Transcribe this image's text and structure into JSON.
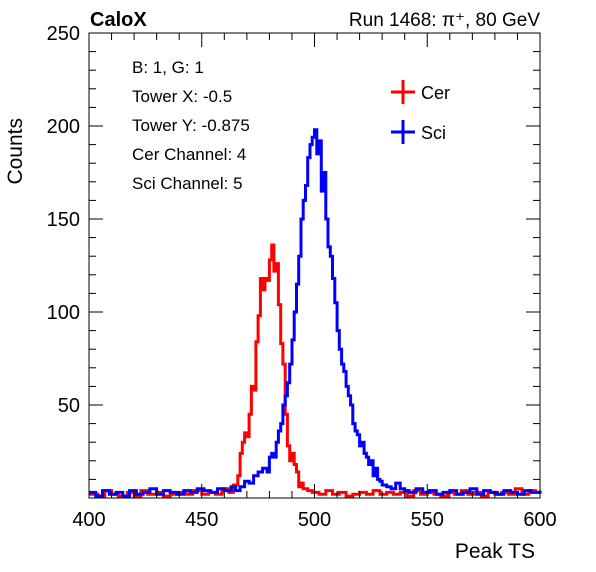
{
  "header": {
    "left": "CaloX",
    "right": "Run 1468:   π⁺, 80 GeV"
  },
  "chart_data": {
    "type": "line",
    "style": "step-histogram",
    "title": "",
    "xlabel": "Peak TS",
    "ylabel": "Counts",
    "xlim": [
      400,
      600
    ],
    "ylim": [
      0,
      250
    ],
    "xticks": [
      400,
      450,
      500,
      550,
      600
    ],
    "yticks": [
      50,
      100,
      150,
      200,
      250
    ],
    "grid": false,
    "legend": "top-right",
    "info": [
      "B: 1, G: 1",
      "Tower X: -0.5",
      "Tower Y: -0.875",
      "Cer Channel: 4",
      "Sci Channel: 5"
    ],
    "series": [
      {
        "name": "Cer",
        "color": "#ff0000",
        "points": [
          [
            400,
            2
          ],
          [
            404,
            1
          ],
          [
            407,
            4
          ],
          [
            410,
            2
          ],
          [
            413,
            1
          ],
          [
            417,
            3
          ],
          [
            420,
            1
          ],
          [
            423,
            4
          ],
          [
            426,
            2
          ],
          [
            430,
            3
          ],
          [
            433,
            1
          ],
          [
            436,
            2
          ],
          [
            440,
            3
          ],
          [
            443,
            2
          ],
          [
            446,
            4
          ],
          [
            450,
            2
          ],
          [
            453,
            3
          ],
          [
            456,
            2
          ],
          [
            459,
            5
          ],
          [
            462,
            3
          ],
          [
            464,
            7
          ],
          [
            466,
            12
          ],
          [
            467,
            24
          ],
          [
            468,
            30
          ],
          [
            469,
            35
          ],
          [
            470,
            33
          ],
          [
            471,
            45
          ],
          [
            472,
            60
          ],
          [
            473,
            58
          ],
          [
            474,
            84
          ],
          [
            475,
            98
          ],
          [
            476,
            118
          ],
          [
            477,
            112
          ],
          [
            478,
            118
          ],
          [
            479,
            117
          ],
          [
            480,
            128
          ],
          [
            481,
            136
          ],
          [
            482,
            122
          ],
          [
            483,
            126
          ],
          [
            484,
            104
          ],
          [
            485,
            83
          ],
          [
            486,
            72
          ],
          [
            487,
            45
          ],
          [
            488,
            28
          ],
          [
            489,
            20
          ],
          [
            490,
            24
          ],
          [
            491,
            18
          ],
          [
            492,
            14
          ],
          [
            493,
            6
          ],
          [
            494,
            8
          ],
          [
            495,
            5
          ],
          [
            497,
            4
          ],
          [
            499,
            3
          ],
          [
            502,
            2
          ],
          [
            505,
            4
          ],
          [
            508,
            2
          ],
          [
            511,
            3
          ],
          [
            514,
            1
          ],
          [
            517,
            2
          ],
          [
            520,
            3
          ],
          [
            523,
            2
          ],
          [
            526,
            4
          ],
          [
            529,
            2
          ],
          [
            532,
            3
          ],
          [
            535,
            2
          ],
          [
            538,
            3
          ],
          [
            541,
            1
          ],
          [
            544,
            4
          ],
          [
            547,
            2
          ],
          [
            550,
            3
          ],
          [
            553,
            2
          ],
          [
            556,
            1
          ],
          [
            559,
            3
          ],
          [
            562,
            2
          ],
          [
            565,
            4
          ],
          [
            568,
            2
          ],
          [
            571,
            3
          ],
          [
            574,
            1
          ],
          [
            577,
            3
          ],
          [
            580,
            2
          ],
          [
            583,
            3
          ],
          [
            586,
            2
          ],
          [
            589,
            5
          ],
          [
            592,
            2
          ],
          [
            595,
            4
          ],
          [
            598,
            3
          ],
          [
            600,
            3
          ]
        ]
      },
      {
        "name": "Sci",
        "color": "#0000ff",
        "points": [
          [
            400,
            3
          ],
          [
            403,
            1
          ],
          [
            406,
            4
          ],
          [
            409,
            2
          ],
          [
            412,
            3
          ],
          [
            415,
            1
          ],
          [
            418,
            4
          ],
          [
            421,
            2
          ],
          [
            424,
            3
          ],
          [
            427,
            5
          ],
          [
            430,
            2
          ],
          [
            433,
            4
          ],
          [
            436,
            3
          ],
          [
            439,
            2
          ],
          [
            442,
            4
          ],
          [
            445,
            3
          ],
          [
            448,
            5
          ],
          [
            451,
            4
          ],
          [
            454,
            3
          ],
          [
            457,
            5
          ],
          [
            460,
            4
          ],
          [
            463,
            6
          ],
          [
            465,
            4
          ],
          [
            467,
            6
          ],
          [
            469,
            9
          ],
          [
            471,
            8
          ],
          [
            473,
            12
          ],
          [
            475,
            14
          ],
          [
            477,
            16
          ],
          [
            479,
            14
          ],
          [
            480,
            22
          ],
          [
            481,
            24
          ],
          [
            482,
            22
          ],
          [
            483,
            30
          ],
          [
            484,
            36
          ],
          [
            485,
            40
          ],
          [
            486,
            50
          ],
          [
            487,
            55
          ],
          [
            488,
            62
          ],
          [
            489,
            72
          ],
          [
            490,
            85
          ],
          [
            491,
            100
          ],
          [
            492,
            115
          ],
          [
            493,
            130
          ],
          [
            494,
            150
          ],
          [
            495,
            160
          ],
          [
            496,
            168
          ],
          [
            497,
            183
          ],
          [
            498,
            190
          ],
          [
            499,
            194
          ],
          [
            500,
            198
          ],
          [
            501,
            185
          ],
          [
            502,
            192
          ],
          [
            503,
            165
          ],
          [
            504,
            175
          ],
          [
            505,
            150
          ],
          [
            506,
            135
          ],
          [
            507,
            130
          ],
          [
            508,
            118
          ],
          [
            509,
            105
          ],
          [
            510,
            90
          ],
          [
            511,
            80
          ],
          [
            512,
            72
          ],
          [
            513,
            68
          ],
          [
            514,
            60
          ],
          [
            515,
            55
          ],
          [
            516,
            50
          ],
          [
            517,
            40
          ],
          [
            518,
            36
          ],
          [
            519,
            34
          ],
          [
            520,
            28
          ],
          [
            521,
            30
          ],
          [
            522,
            24
          ],
          [
            523,
            22
          ],
          [
            524,
            18
          ],
          [
            525,
            20
          ],
          [
            526,
            12
          ],
          [
            527,
            16
          ],
          [
            528,
            10
          ],
          [
            529,
            9
          ],
          [
            530,
            7
          ],
          [
            532,
            6
          ],
          [
            534,
            5
          ],
          [
            536,
            8
          ],
          [
            538,
            5
          ],
          [
            540,
            4
          ],
          [
            542,
            3
          ],
          [
            545,
            5
          ],
          [
            548,
            3
          ],
          [
            551,
            4
          ],
          [
            554,
            2
          ],
          [
            557,
            3
          ],
          [
            560,
            4
          ],
          [
            563,
            2
          ],
          [
            566,
            3
          ],
          [
            569,
            5
          ],
          [
            572,
            2
          ],
          [
            575,
            4
          ],
          [
            578,
            3
          ],
          [
            581,
            2
          ],
          [
            584,
            4
          ],
          [
            587,
            3
          ],
          [
            590,
            2
          ],
          [
            593,
            4
          ],
          [
            596,
            3
          ],
          [
            600,
            4
          ]
        ]
      }
    ]
  }
}
